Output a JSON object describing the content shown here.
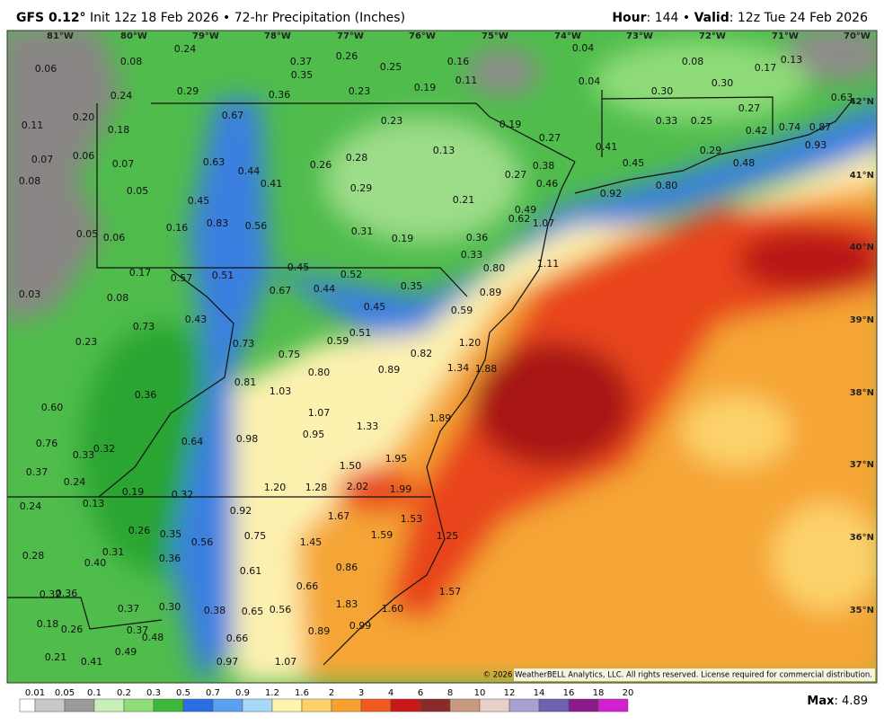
{
  "header": {
    "model": "GFS 0.12°",
    "title": "Init 12z 18 Feb 2026 • 72-hr Precipitation (Inches)",
    "hour_key": "Hour",
    "hour_value": ": 144 • ",
    "valid_key": "Valid",
    "valid_value": ": 12z Tue 24 Feb 2026"
  },
  "map": {
    "lon_labels": [
      "81°W",
      "80°W",
      "79°W",
      "78°W",
      "77°W",
      "76°W",
      "75°W",
      "74°W",
      "73°W",
      "72°W",
      "71°W",
      "70°W"
    ],
    "lat_labels": [
      "42°N",
      "41°N",
      "40°N",
      "39°N",
      "38°N",
      "37°N",
      "36°N",
      "35°N"
    ],
    "labels": [
      "0.24",
      "0.06",
      "0.08",
      "0.37",
      "0.26",
      "0.25",
      "0.16",
      "0.04",
      "0.08",
      "0.17",
      "0.13",
      "0.35",
      "0.11",
      "0.04",
      "0.29",
      "0.36",
      "0.23",
      "0.19",
      "0.30",
      "0.30",
      "0.63",
      "0.24",
      "0.11",
      "0.20",
      "0.18",
      "0.67",
      "0.23",
      "0.19",
      "0.33",
      "0.25",
      "0.27",
      "0.74",
      "0.87",
      "0.42",
      "0.27",
      "0.41",
      "0.13",
      "0.29",
      "0.93",
      "0.07",
      "0.06",
      "0.07",
      "0.63",
      "0.44",
      "0.26",
      "0.28",
      "0.45",
      "0.48",
      "0.38",
      "0.27",
      "0.41",
      "0.08",
      "0.29",
      "0.46",
      "0.80",
      "0.05",
      "0.92",
      "0.45",
      "0.21",
      "0.49",
      "0.62",
      "1.07",
      "0.83",
      "0.56",
      "0.16",
      "0.31",
      "0.19",
      "0.36",
      "0.05",
      "0.06",
      "0.33",
      "1.11",
      "0.80",
      "0.17",
      "0.57",
      "0.51",
      "0.45",
      "0.52",
      "0.67",
      "0.44",
      "0.35",
      "0.89",
      "0.03",
      "0.08",
      "0.45",
      "0.59",
      "0.43",
      "0.73",
      "0.51",
      "0.59",
      "1.20",
      "0.23",
      "0.73",
      "0.82",
      "0.75",
      "1.34",
      "1.88",
      "0.80",
      "0.81",
      "0.89",
      "1.03",
      "0.36",
      "0.60",
      "1.07",
      "1.89",
      "1.33",
      "0.98",
      "0.95",
      "0.64",
      "0.76",
      "0.32",
      "0.33",
      "1.95",
      "1.50",
      "0.37",
      "0.24",
      "2.02",
      "1.99",
      "1.20",
      "1.28",
      "0.19",
      "0.32",
      "0.13",
      "0.24",
      "0.92",
      "1.67",
      "1.53",
      "0.26",
      "0.35",
      "0.75",
      "1.59",
      "1.25",
      "0.56",
      "1.45",
      "0.31",
      "0.28",
      "0.36",
      "0.40",
      "0.61",
      "0.86",
      "0.66",
      "0.32",
      "0.36",
      "1.57",
      "1.83",
      "0.37",
      "0.30",
      "0.38",
      "0.65",
      "0.56",
      "1.60",
      "0.18",
      "0.26",
      "0.37",
      "0.99",
      "0.89",
      "0.48",
      "0.66",
      "0.49",
      "0.21",
      "0.41",
      "0.97",
      "1.07"
    ],
    "copyright": "© 2026 WeatherBELL Analytics, LLC. All rights reserved. License required for commercial distribution."
  },
  "colorbar": {
    "labels": [
      "0.01",
      "0.05",
      "0.1",
      "0.2",
      "0.3",
      "0.5",
      "0.7",
      "0.9",
      "1.2",
      "1.6",
      "2",
      "3",
      "4",
      "6",
      "8",
      "10",
      "12",
      "14",
      "16",
      "18",
      "20"
    ],
    "colors": [
      "#ffffff",
      "#c8c8c8",
      "#9a9a9a",
      "#c6f0b8",
      "#8fdc78",
      "#3fb83a",
      "#2a6fe0",
      "#5aa0f0",
      "#a8d8f8",
      "#fff3b0",
      "#fdd26a",
      "#f8a030",
      "#ef5a20",
      "#c81818",
      "#8b2a2a",
      "#c89a80",
      "#e8d0c8",
      "#a8a0d0",
      "#7060b0",
      "#8a1a8a",
      "#d020d0"
    ]
  },
  "footer": {
    "max_key": "Max",
    "max_value": ": 4.89"
  }
}
